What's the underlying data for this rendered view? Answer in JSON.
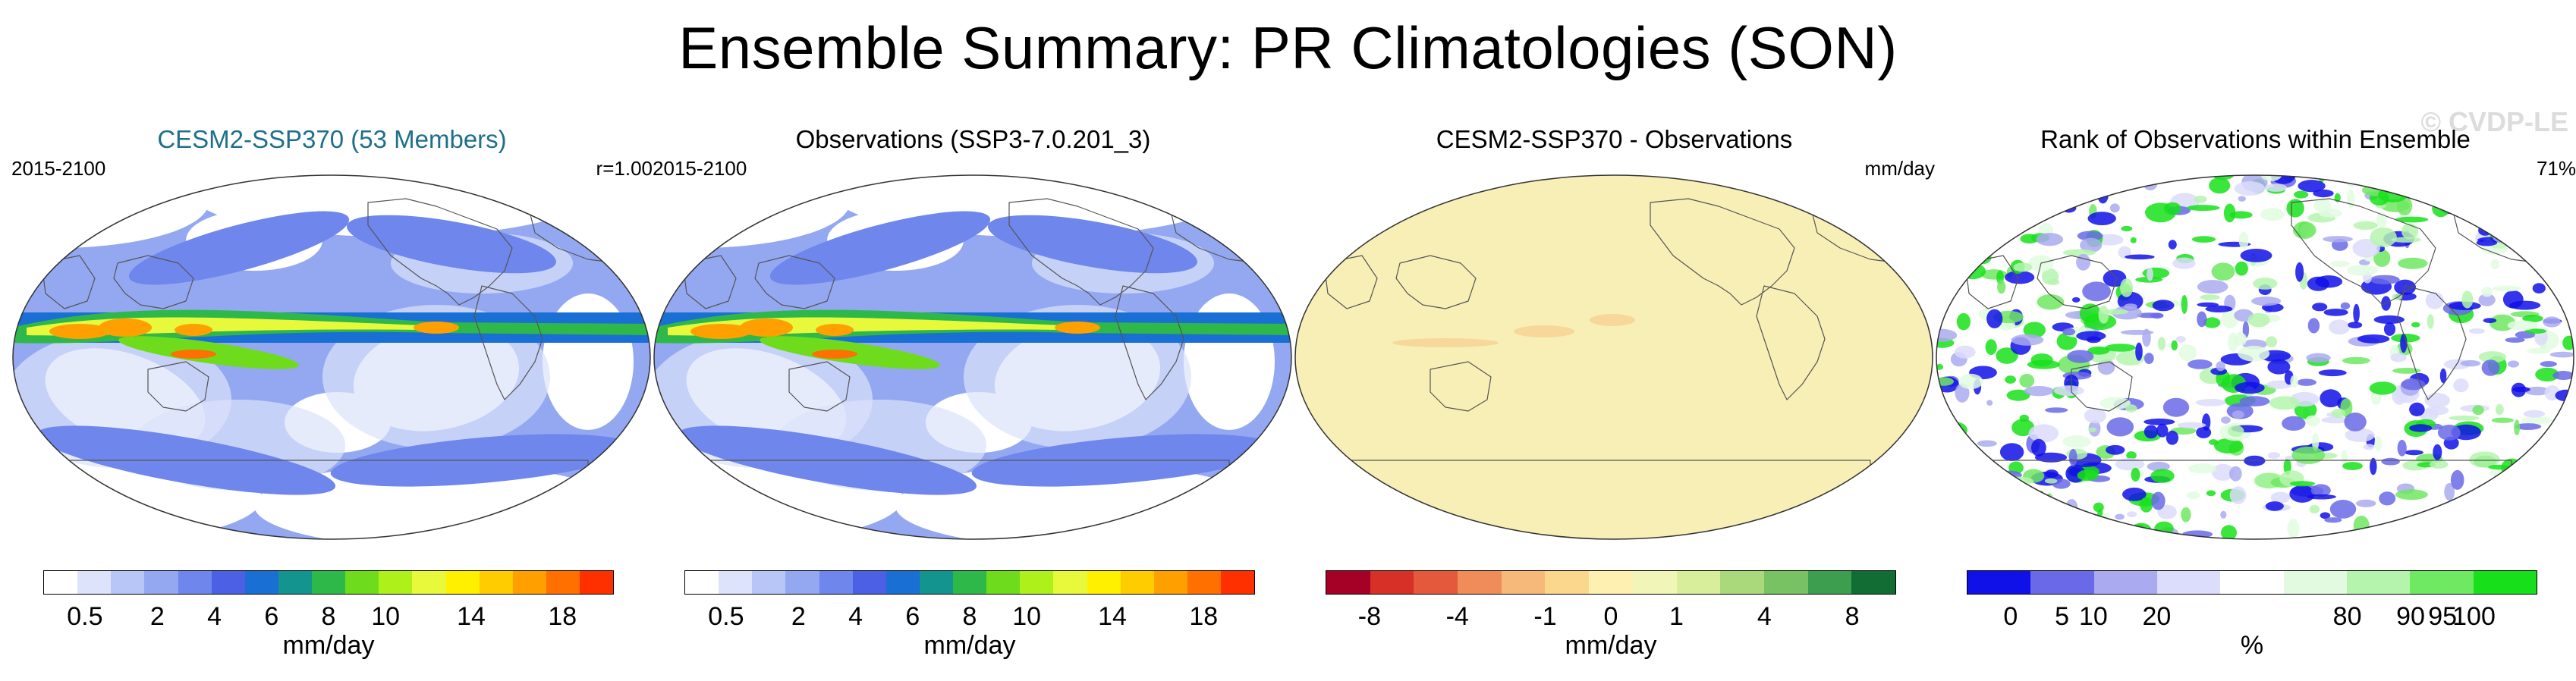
{
  "title": "Ensemble Summary: PR Climatologies (SON)",
  "watermark": "© CVDP-LE",
  "panels": [
    {
      "title": "CESM2-SSP370 (53 Members)",
      "title_color": "#1f6f8b",
      "left": "2015-2100",
      "right": "r=1.00"
    },
    {
      "title": "Observations (SSP3-7.0.201_3)",
      "title_color": "#000000",
      "left": "2015-2100",
      "right": ""
    },
    {
      "title": "CESM2-SSP370 - Observations",
      "title_color": "#000000",
      "left": "",
      "right": "mm/day"
    },
    {
      "title": "Rank of Observations within Ensemble",
      "title_color": "#000000",
      "left": "",
      "right": "71%"
    }
  ],
  "colorbars": [
    {
      "unit": "mm/day",
      "ticks": [
        "0.5",
        "2",
        "4",
        "6",
        "8",
        "10",
        "14",
        "18"
      ],
      "colors": [
        "#ffffff",
        "#dce3fb",
        "#b8c6f7",
        "#94a8f2",
        "#6f86ec",
        "#4c60e6",
        "#1a6fd4",
        "#13948f",
        "#2eb84a",
        "#6edb1c",
        "#aef01a",
        "#e8f83a",
        "#fff000",
        "#ffcc00",
        "#ffa000",
        "#ff7000",
        "#ff3000"
      ]
    },
    {
      "unit": "mm/day",
      "ticks": [
        "0.5",
        "2",
        "4",
        "6",
        "8",
        "10",
        "14",
        "18"
      ],
      "colors": [
        "#ffffff",
        "#dce3fb",
        "#b8c6f7",
        "#94a8f2",
        "#6f86ec",
        "#4c60e6",
        "#1a6fd4",
        "#13948f",
        "#2eb84a",
        "#6edb1c",
        "#aef01a",
        "#e8f83a",
        "#fff000",
        "#ffcc00",
        "#ffa000",
        "#ff7000",
        "#ff3000"
      ]
    },
    {
      "unit": "mm/day",
      "ticks": [
        "-8",
        "-4",
        "-1",
        "0",
        "1",
        "4",
        "8"
      ],
      "colors": [
        "#a50026",
        "#d73027",
        "#e4583c",
        "#f08c5a",
        "#f6b97a",
        "#fbd78e",
        "#fdf0b0",
        "#f2f5b8",
        "#d9ee9b",
        "#a9d97a",
        "#78c263",
        "#3d9e4f",
        "#116d34"
      ]
    },
    {
      "unit": "%",
      "ticks": [
        "0",
        "5",
        "10",
        "20",
        "80",
        "90",
        "95",
        "100"
      ],
      "colors": [
        "#1010e8",
        "#6a6ae8",
        "#aaaaf0",
        "#dcdcfc",
        "#ffffff",
        "#e2fbe0",
        "#b5f4ad",
        "#6fe862",
        "#17e01a"
      ]
    }
  ],
  "chart_data": [
    {
      "type": "heatmap",
      "title": "CESM2-SSP370 (53 Members)",
      "period": "2015-2100",
      "pattern_correlation": "r=1.00",
      "units": "mm/day",
      "contour_levels": [
        0.5,
        1,
        2,
        3,
        4,
        5,
        6,
        7,
        8,
        9,
        10,
        12,
        14,
        16,
        18
      ]
    },
    {
      "type": "heatmap",
      "title": "Observations (SSP3-7.0.201_3)",
      "period": "2015-2100",
      "units": "mm/day",
      "contour_levels": [
        0.5,
        1,
        2,
        3,
        4,
        5,
        6,
        7,
        8,
        9,
        10,
        12,
        14,
        16,
        18
      ]
    },
    {
      "type": "heatmap",
      "title": "CESM2-SSP370 - Observations",
      "units": "mm/day",
      "contour_levels": [
        -8,
        -6,
        -4,
        -2,
        -1,
        -0.5,
        0,
        0.5,
        1,
        2,
        4,
        6,
        8
      ]
    },
    {
      "type": "heatmap",
      "title": "Rank of Observations within Ensemble",
      "units": "%",
      "summary": "71%",
      "contour_levels": [
        0,
        5,
        10,
        20,
        80,
        90,
        95,
        100
      ]
    }
  ]
}
